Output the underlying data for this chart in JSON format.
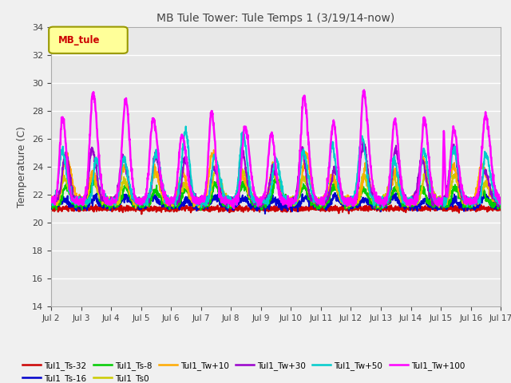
{
  "title": "MB Tule Tower: Tule Temps 1 (3/19/14-now)",
  "ylabel": "Temperature (C)",
  "ylim": [
    14,
    34
  ],
  "yticks": [
    14,
    16,
    18,
    20,
    22,
    24,
    26,
    28,
    30,
    32,
    34
  ],
  "xtick_labels": [
    "Jul 2",
    "Jul 3",
    "Jul 4",
    "Jul 5",
    "Jul 6",
    "Jul 7",
    "Jul 8",
    "Jul 9",
    "Jul 10",
    "Jul 11",
    "Jul 12",
    "Jul 13",
    "Jul 14",
    "Jul 15",
    "Jul 16",
    "Jul 17"
  ],
  "series_order": [
    "Tul1_Ts-32",
    "Tul1_Ts-16",
    "Tul1_Ts-8",
    "Tul1_Ts0",
    "Tul1_Tw+10",
    "Tul1_Tw+30",
    "Tul1_Tw+50",
    "Tul1_Tw+100"
  ],
  "series_colors": [
    "#cc0000",
    "#0000cc",
    "#00cc00",
    "#cccc00",
    "#ffaa00",
    "#9900cc",
    "#00cccc",
    "#ff00ff"
  ],
  "series_lw": [
    1.5,
    1.5,
    1.5,
    1.5,
    1.5,
    1.5,
    1.5,
    1.8
  ],
  "series_amps": [
    0.2,
    0.6,
    1.5,
    2.0,
    3.0,
    3.5,
    4.5,
    7.5
  ],
  "series_bases": [
    21.0,
    21.2,
    21.3,
    21.5,
    21.5,
    21.5,
    21.5,
    21.5
  ],
  "legend_label": "MB_tule",
  "legend_color": "#cc0000",
  "legend_bg": "#ffff99",
  "legend_border": "#999900",
  "bg_color": "#e8e8e8",
  "grid_color": "#ffffff",
  "title_color": "#444444",
  "n_days": 15
}
